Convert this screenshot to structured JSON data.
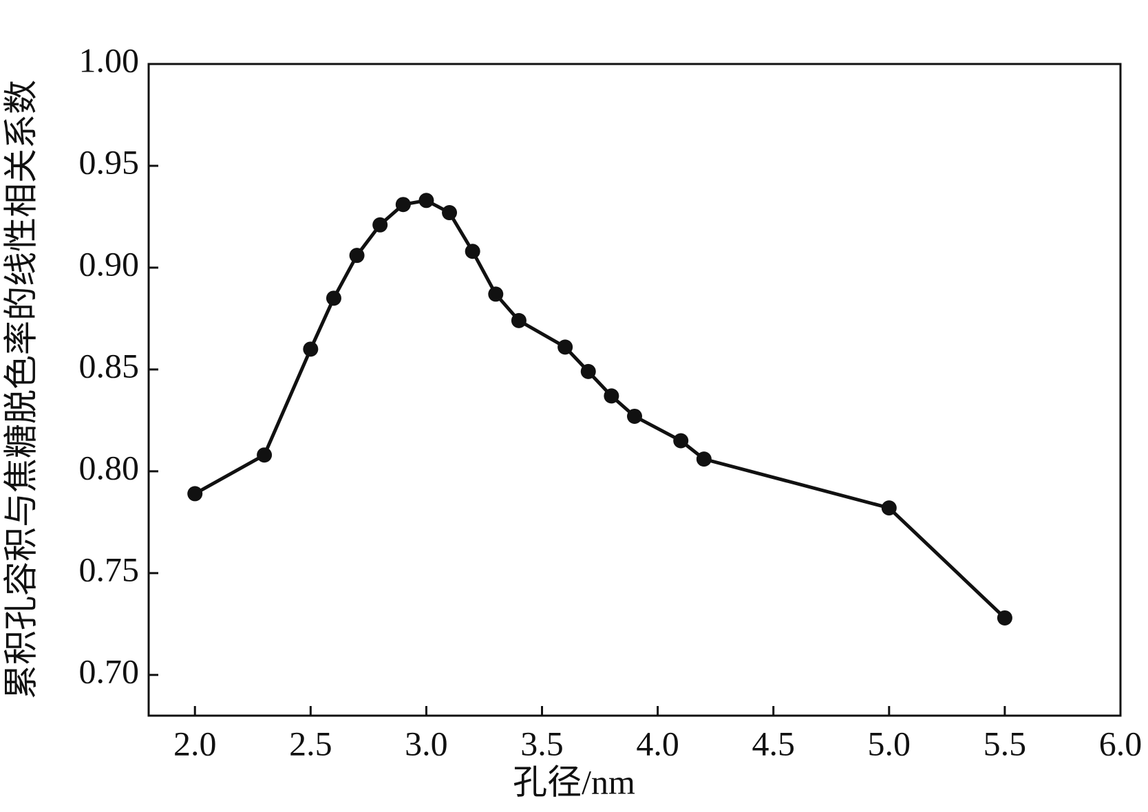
{
  "chart_data": {
    "type": "line",
    "xlabel": "孔径/nm",
    "ylabel": "累积孔容积与焦糖脱色率的线性相关系数",
    "x": [
      2.0,
      2.3,
      2.5,
      2.6,
      2.7,
      2.8,
      2.9,
      3.0,
      3.1,
      3.2,
      3.3,
      3.4,
      3.6,
      3.7,
      3.8,
      3.9,
      4.1,
      4.2,
      5.0,
      5.5
    ],
    "series": [
      {
        "color": "#111111",
        "values": [
          0.789,
          0.808,
          0.86,
          0.885,
          0.906,
          0.921,
          0.931,
          0.933,
          0.927,
          0.908,
          0.887,
          0.874,
          0.861,
          0.849,
          0.837,
          0.827,
          0.815,
          0.806,
          0.782,
          0.728
        ]
      }
    ],
    "xlim": [
      1.8,
      6.0
    ],
    "ylim": [
      0.68,
      1.0
    ],
    "xticks": [
      {
        "value": 2.0,
        "label": "2.0"
      },
      {
        "value": 2.5,
        "label": "2.5"
      },
      {
        "value": 3.0,
        "label": "3.0"
      },
      {
        "value": 3.5,
        "label": "3.5"
      },
      {
        "value": 4.0,
        "label": "4.0"
      },
      {
        "value": 4.5,
        "label": "4.5"
      },
      {
        "value": 5.0,
        "label": "5.0"
      },
      {
        "value": 5.5,
        "label": "5.5"
      },
      {
        "value": 6.0,
        "label": "6.0"
      }
    ],
    "yticks": [
      {
        "value": 0.7,
        "label": "0.70"
      },
      {
        "value": 0.75,
        "label": "0.75"
      },
      {
        "value": 0.8,
        "label": "0.80"
      },
      {
        "value": 0.85,
        "label": "0.85"
      },
      {
        "value": 0.9,
        "label": "0.90"
      },
      {
        "value": 0.95,
        "label": "0.95"
      },
      {
        "value": 1.0,
        "label": "1.00"
      }
    ],
    "grid": false
  }
}
